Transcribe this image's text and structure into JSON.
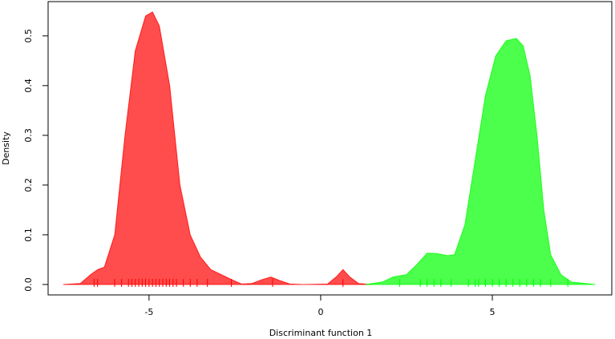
{
  "chart_data": {
    "type": "density",
    "xlabel": "Discriminant function 1",
    "ylabel": "Density",
    "xlim": [
      -7.94,
      8.48
    ],
    "ylim": [
      -0.021,
      0.569
    ],
    "xticks": [
      -5,
      0,
      5
    ],
    "yticks": [
      {
        "value": 0,
        "label": "0.0"
      },
      0.1,
      0.2,
      0.3,
      0.4,
      0.5
    ],
    "series": [
      {
        "color": "#ff0000",
        "x": [
          -7.5,
          -7.0,
          -6.7,
          -6.5,
          -6.3,
          -6.0,
          -5.7,
          -5.4,
          -5.1,
          -4.9,
          -4.7,
          -4.4,
          -4.1,
          -3.8,
          -3.5,
          -3.2,
          -2.9,
          -2.6,
          -2.3,
          -2.0,
          -1.7,
          -1.45,
          -1.2,
          -0.9,
          -0.5,
          0.2,
          0.45,
          0.65,
          0.85,
          1.1,
          1.5
        ],
        "values": [
          0,
          0.002,
          0.02,
          0.03,
          0.035,
          0.1,
          0.3,
          0.47,
          0.54,
          0.548,
          0.52,
          0.4,
          0.2,
          0.1,
          0.055,
          0.03,
          0.02,
          0.01,
          0.001,
          0.002,
          0.01,
          0.015,
          0.008,
          0.001,
          0,
          0.001,
          0.015,
          0.03,
          0.015,
          0.002,
          0
        ],
        "rug": [
          -6.6,
          -6.5,
          -6.0,
          -5.8,
          -5.6,
          -5.5,
          -5.4,
          -5.3,
          -5.2,
          -5.1,
          -5.0,
          -4.9,
          -4.8,
          -4.7,
          -4.6,
          -4.5,
          -4.4,
          -4.3,
          -4.2,
          -4.0,
          -3.8,
          -3.6,
          -3.3,
          -2.6,
          -1.4,
          0.65
        ]
      },
      {
        "color": "#00ff00",
        "x": [
          1.3,
          1.8,
          2.1,
          2.5,
          2.8,
          3.1,
          3.4,
          3.7,
          3.9,
          4.2,
          4.5,
          4.8,
          5.1,
          5.4,
          5.7,
          5.9,
          6.1,
          6.3,
          6.5,
          6.7,
          7.0,
          7.3,
          8.0
        ],
        "values": [
          0,
          0.005,
          0.015,
          0.02,
          0.04,
          0.063,
          0.062,
          0.058,
          0.06,
          0.12,
          0.25,
          0.38,
          0.46,
          0.49,
          0.495,
          0.48,
          0.42,
          0.3,
          0.15,
          0.06,
          0.02,
          0.005,
          0
        ],
        "rug": [
          2.3,
          2.9,
          3.1,
          3.3,
          3.5,
          3.8,
          4.3,
          4.5,
          4.6,
          4.8,
          5.0,
          5.2,
          5.4,
          5.6,
          5.8,
          6.0,
          6.2,
          6.4,
          6.7,
          7.2
        ]
      }
    ]
  }
}
